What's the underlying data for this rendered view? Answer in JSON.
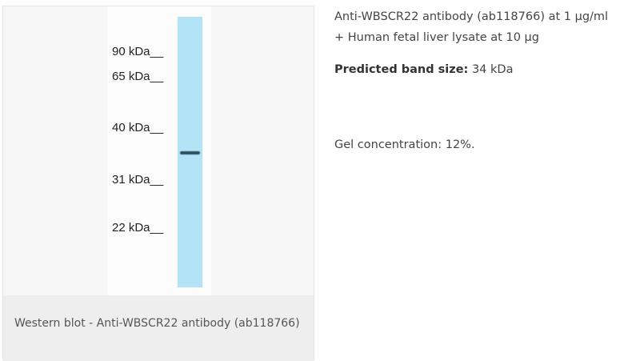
{
  "image": {
    "markers": [
      "90 kDa__",
      "65 kDa__",
      "40 kDa__",
      "31 kDa__",
      "22 kDa__"
    ],
    "lane_color": "#b3e3f6",
    "band_color": "#2c4d5a",
    "caption": "Western blot - Anti-WBSCR22 antibody (ab118766)"
  },
  "info": {
    "line1": "Anti-WBSCR22 antibody (ab118766) at 1 µg/ml",
    "line2": "+ Human fetal liver lysate at 10 µg",
    "band_label": "Predicted band size:",
    "band_value": " 34 kDa",
    "gel": "Gel concentration: 12%."
  }
}
